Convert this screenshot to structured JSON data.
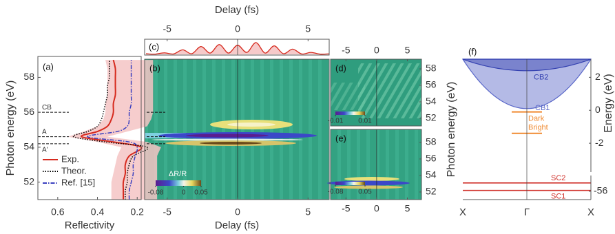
{
  "chart_data": [
    {
      "type": "reflectivity",
      "panel": "(a)",
      "xlabel": "Reflectivity",
      "ylabel": "Photon energy (eV)",
      "xlim": [
        0.7,
        0.18
      ],
      "xticks": [
        0.6,
        0.4,
        0.2
      ],
      "ylim": [
        51,
        59.2
      ],
      "yticks": [
        52,
        54,
        56,
        58
      ],
      "energies": [
        51,
        51.5,
        52,
        52.5,
        53,
        53.5,
        54,
        54.3,
        54.6,
        54.9,
        55.2,
        55.6,
        56,
        56.5,
        57,
        57.5,
        58,
        58.5,
        59
      ],
      "band": {
        "color": "#f4c4c4",
        "upper": [
          0.33,
          0.33,
          0.33,
          0.32,
          0.31,
          0.3,
          0.28,
          0.4,
          0.55,
          0.47,
          0.4,
          0.37,
          0.36,
          0.36,
          0.35,
          0.35,
          0.35,
          0.35,
          0.36
        ],
        "lower": [
          0.1,
          0.1,
          0.1,
          0.1,
          0.1,
          0.1,
          0.08,
          0.15,
          0.35,
          0.25,
          0.15,
          0.13,
          0.12,
          0.12,
          0.12,
          0.12,
          0.12,
          0.12,
          0.12
        ]
      },
      "series": [
        {
          "name": "Exp.",
          "color": "#d62a1e",
          "style": "solid",
          "values": [
            0.27,
            0.27,
            0.27,
            0.26,
            0.26,
            0.24,
            0.18,
            0.32,
            0.48,
            0.4,
            0.35,
            0.33,
            0.32,
            0.32,
            0.31,
            0.31,
            0.31,
            0.31,
            0.32
          ]
        },
        {
          "name": "Theor.",
          "color": "#000000",
          "style": "dotted",
          "values": [
            0.26,
            0.26,
            0.25,
            0.25,
            0.24,
            0.22,
            0.15,
            0.36,
            0.52,
            0.45,
            0.4,
            0.38,
            0.37,
            0.36,
            0.35,
            0.35,
            0.34,
            0.34,
            0.34
          ]
        },
        {
          "name": "Ref. [15]",
          "color": "#3a3fbf",
          "style": "dashdot",
          "values": [
            0.24,
            0.24,
            0.23,
            0.22,
            0.22,
            0.21,
            0.2,
            0.24,
            0.45,
            0.3,
            0.25,
            0.24,
            0.24,
            0.23,
            0.23,
            0.23,
            0.23,
            0.23,
            0.23
          ]
        }
      ],
      "annotations": [
        {
          "text": "CB",
          "energy": 56
        },
        {
          "text": "A",
          "energy": 54.6
        },
        {
          "text": "A'",
          "energy": 54.2
        }
      ],
      "legend": "lower left"
    },
    {
      "type": "line",
      "panel": "(c)",
      "xlabel": "Delay (fs)",
      "xlim": [
        -6.6,
        6.5
      ],
      "xticks": [
        -5,
        0,
        5
      ],
      "ylim": [
        0,
        1
      ],
      "color": "#d62a1e",
      "x": [
        -6.5,
        -5.85,
        -5.2,
        -4.55,
        -3.9,
        -3.25,
        -2.6,
        -1.95,
        -1.3,
        -0.65,
        0,
        0.65,
        1.3,
        1.95,
        2.6,
        3.25,
        3.9,
        4.55,
        5.2,
        5.85,
        6.5
      ],
      "values": [
        0.05,
        0.02,
        0.12,
        0.03,
        0.35,
        0.05,
        0.6,
        0.1,
        0.75,
        0.1,
        0.7,
        0.15,
        0.9,
        0.1,
        0.65,
        0.05,
        0.4,
        0.03,
        0.15,
        0.02,
        0.04
      ]
    },
    {
      "type": "heatmap",
      "panel": "(b)",
      "xlabel": "Delay (fs)",
      "xlim": [
        -6.6,
        6.5
      ],
      "xticks": [
        -5,
        0,
        5
      ],
      "ylim": [
        51,
        59.2
      ],
      "colorbar": {
        "label": "ΔR/R",
        "clim": [
          -0.08,
          0.05
        ],
        "ticks": [
          -0.08,
          0,
          0.05
        ]
      }
    },
    {
      "type": "heatmap",
      "panel": "(d)",
      "ylabel": "Photon energy (eV)",
      "xlim": [
        -7.5,
        7.3
      ],
      "xticks": [
        -5,
        0,
        5
      ],
      "ylim": [
        51.08,
        59.17
      ],
      "yticks": [
        52,
        54,
        56,
        58
      ],
      "colorbar": {
        "clim": [
          -0.01,
          0.01
        ],
        "ticks": [
          -0.01,
          0.01
        ]
      }
    },
    {
      "type": "heatmap",
      "panel": "(e)",
      "xlim": [
        -7.5,
        7.3
      ],
      "xticks": [
        -5,
        0,
        5
      ],
      "ylim": [
        51.08,
        59.58
      ],
      "yticks": [
        52,
        54,
        56,
        58
      ],
      "colorbar": {
        "clim": [
          -0.08,
          0.05
        ],
        "ticks": [
          -0.08,
          0.05
        ]
      }
    },
    {
      "type": "band-diagram",
      "panel": "(f)",
      "ylabel": "Energy (eV)",
      "ylim": [
        -3.75,
        3.1
      ],
      "yticks": [
        2,
        0,
        -2
      ],
      "ylim_lower": [
        -57,
        -54.1
      ],
      "yticks_lower": [
        -56
      ],
      "categories": [
        "X",
        "Γ",
        "X"
      ],
      "bands": [
        {
          "name": "CB1",
          "color": "#5866c8",
          "gamma": 0.1,
          "edge": 3.1
        },
        {
          "name": "CB2",
          "color": "#3340b0",
          "gamma": 2.4,
          "edge": 3.1
        }
      ],
      "levels": [
        {
          "name": "Dark",
          "color": "#f08a30",
          "energy": -0.1
        },
        {
          "name": "Bright",
          "color": "#f08a30",
          "energy": -1.4
        },
        {
          "name": "SC2",
          "color": "#d0302a",
          "energy": -55.0
        },
        {
          "name": "SC1",
          "color": "#d0302a",
          "energy": -55.9
        }
      ]
    }
  ]
}
